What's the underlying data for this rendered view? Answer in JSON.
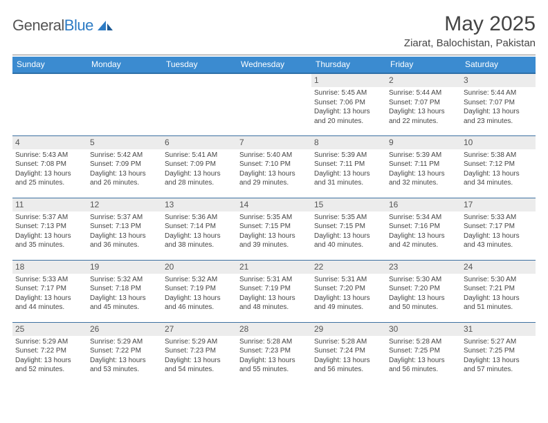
{
  "logo": {
    "word1": "General",
    "word2": "Blue"
  },
  "title": "May 2025",
  "location": "Ziarat, Balochistan, Pakistan",
  "colors": {
    "header_bg": "#3b8bd0",
    "header_border": "#2d6fa8",
    "row_border": "#3b6fa0",
    "daynum_bg": "#ececec",
    "logo_blue": "#2d7bc4"
  },
  "weekdays": [
    "Sunday",
    "Monday",
    "Tuesday",
    "Wednesday",
    "Thursday",
    "Friday",
    "Saturday"
  ],
  "weeks": [
    [
      null,
      null,
      null,
      null,
      {
        "n": "1",
        "sr": "5:45 AM",
        "ss": "7:06 PM",
        "dl": "13 hours and 20 minutes."
      },
      {
        "n": "2",
        "sr": "5:44 AM",
        "ss": "7:07 PM",
        "dl": "13 hours and 22 minutes."
      },
      {
        "n": "3",
        "sr": "5:44 AM",
        "ss": "7:07 PM",
        "dl": "13 hours and 23 minutes."
      }
    ],
    [
      {
        "n": "4",
        "sr": "5:43 AM",
        "ss": "7:08 PM",
        "dl": "13 hours and 25 minutes."
      },
      {
        "n": "5",
        "sr": "5:42 AM",
        "ss": "7:09 PM",
        "dl": "13 hours and 26 minutes."
      },
      {
        "n": "6",
        "sr": "5:41 AM",
        "ss": "7:09 PM",
        "dl": "13 hours and 28 minutes."
      },
      {
        "n": "7",
        "sr": "5:40 AM",
        "ss": "7:10 PM",
        "dl": "13 hours and 29 minutes."
      },
      {
        "n": "8",
        "sr": "5:39 AM",
        "ss": "7:11 PM",
        "dl": "13 hours and 31 minutes."
      },
      {
        "n": "9",
        "sr": "5:39 AM",
        "ss": "7:11 PM",
        "dl": "13 hours and 32 minutes."
      },
      {
        "n": "10",
        "sr": "5:38 AM",
        "ss": "7:12 PM",
        "dl": "13 hours and 34 minutes."
      }
    ],
    [
      {
        "n": "11",
        "sr": "5:37 AM",
        "ss": "7:13 PM",
        "dl": "13 hours and 35 minutes."
      },
      {
        "n": "12",
        "sr": "5:37 AM",
        "ss": "7:13 PM",
        "dl": "13 hours and 36 minutes."
      },
      {
        "n": "13",
        "sr": "5:36 AM",
        "ss": "7:14 PM",
        "dl": "13 hours and 38 minutes."
      },
      {
        "n": "14",
        "sr": "5:35 AM",
        "ss": "7:15 PM",
        "dl": "13 hours and 39 minutes."
      },
      {
        "n": "15",
        "sr": "5:35 AM",
        "ss": "7:15 PM",
        "dl": "13 hours and 40 minutes."
      },
      {
        "n": "16",
        "sr": "5:34 AM",
        "ss": "7:16 PM",
        "dl": "13 hours and 42 minutes."
      },
      {
        "n": "17",
        "sr": "5:33 AM",
        "ss": "7:17 PM",
        "dl": "13 hours and 43 minutes."
      }
    ],
    [
      {
        "n": "18",
        "sr": "5:33 AM",
        "ss": "7:17 PM",
        "dl": "13 hours and 44 minutes."
      },
      {
        "n": "19",
        "sr": "5:32 AM",
        "ss": "7:18 PM",
        "dl": "13 hours and 45 minutes."
      },
      {
        "n": "20",
        "sr": "5:32 AM",
        "ss": "7:19 PM",
        "dl": "13 hours and 46 minutes."
      },
      {
        "n": "21",
        "sr": "5:31 AM",
        "ss": "7:19 PM",
        "dl": "13 hours and 48 minutes."
      },
      {
        "n": "22",
        "sr": "5:31 AM",
        "ss": "7:20 PM",
        "dl": "13 hours and 49 minutes."
      },
      {
        "n": "23",
        "sr": "5:30 AM",
        "ss": "7:20 PM",
        "dl": "13 hours and 50 minutes."
      },
      {
        "n": "24",
        "sr": "5:30 AM",
        "ss": "7:21 PM",
        "dl": "13 hours and 51 minutes."
      }
    ],
    [
      {
        "n": "25",
        "sr": "5:29 AM",
        "ss": "7:22 PM",
        "dl": "13 hours and 52 minutes."
      },
      {
        "n": "26",
        "sr": "5:29 AM",
        "ss": "7:22 PM",
        "dl": "13 hours and 53 minutes."
      },
      {
        "n": "27",
        "sr": "5:29 AM",
        "ss": "7:23 PM",
        "dl": "13 hours and 54 minutes."
      },
      {
        "n": "28",
        "sr": "5:28 AM",
        "ss": "7:23 PM",
        "dl": "13 hours and 55 minutes."
      },
      {
        "n": "29",
        "sr": "5:28 AM",
        "ss": "7:24 PM",
        "dl": "13 hours and 56 minutes."
      },
      {
        "n": "30",
        "sr": "5:28 AM",
        "ss": "7:25 PM",
        "dl": "13 hours and 56 minutes."
      },
      {
        "n": "31",
        "sr": "5:27 AM",
        "ss": "7:25 PM",
        "dl": "13 hours and 57 minutes."
      }
    ]
  ],
  "labels": {
    "sunrise": "Sunrise:",
    "sunset": "Sunset:",
    "daylight": "Daylight:"
  }
}
